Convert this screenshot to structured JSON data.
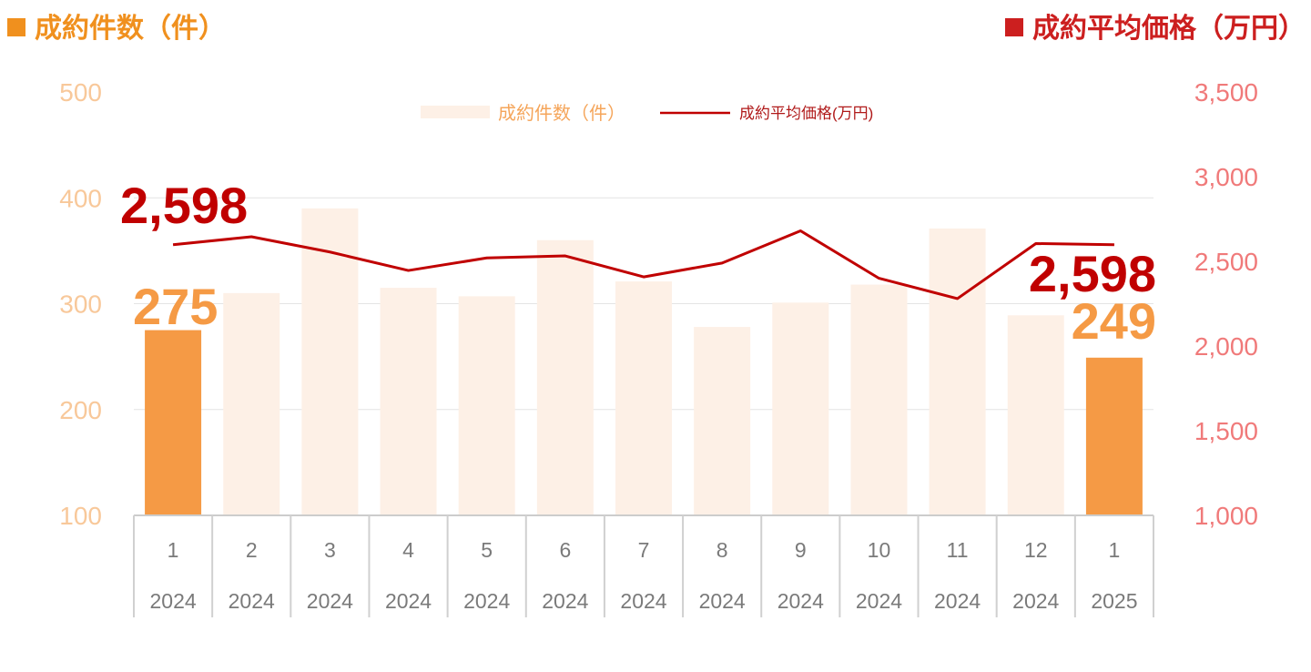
{
  "header": {
    "left_title": "成約件数（件）",
    "right_title": "成約平均価格（万円）"
  },
  "colors": {
    "bar_highlight": "#f59a45",
    "bar_faded": "#fdf0e6",
    "line": "#c00000",
    "left_axis": "#f8c89a",
    "right_axis": "#f07a7a"
  },
  "chart_data": {
    "type": "bar+line",
    "categories": [
      {
        "month": "1",
        "year": "2024"
      },
      {
        "month": "2",
        "year": "2024"
      },
      {
        "month": "3",
        "year": "2024"
      },
      {
        "month": "4",
        "year": "2024"
      },
      {
        "month": "5",
        "year": "2024"
      },
      {
        "month": "6",
        "year": "2024"
      },
      {
        "month": "7",
        "year": "2024"
      },
      {
        "month": "8",
        "year": "2024"
      },
      {
        "month": "9",
        "year": "2024"
      },
      {
        "month": "10",
        "year": "2024"
      },
      {
        "month": "11",
        "year": "2024"
      },
      {
        "month": "12",
        "year": "2024"
      },
      {
        "month": "1",
        "year": "2025"
      }
    ],
    "series": [
      {
        "name": "成約件数（件）",
        "axis": "left",
        "type": "bar",
        "values": [
          275,
          310,
          390,
          315,
          307,
          360,
          321,
          278,
          301,
          318,
          371,
          289,
          249
        ],
        "highlight": [
          true,
          false,
          false,
          false,
          false,
          false,
          false,
          false,
          false,
          false,
          false,
          false,
          true
        ]
      },
      {
        "name": "成約平均価格(万円)",
        "axis": "right",
        "type": "line",
        "values": [
          2598,
          2645,
          2555,
          2446,
          2520,
          2532,
          2408,
          2490,
          2680,
          2400,
          2280,
          2605,
          2598
        ]
      }
    ],
    "left_axis": {
      "min": 100,
      "max": 500,
      "ticks": [
        "100",
        "200",
        "300",
        "400",
        "500"
      ]
    },
    "right_axis": {
      "min": 1000,
      "max": 3500,
      "ticks": [
        "1,000",
        "1,500",
        "2,000",
        "2,500",
        "3,000",
        "3,500"
      ]
    },
    "legend": {
      "position": "top-center",
      "bar_label": "成約件数（件）",
      "line_label": "成約平均価格(万円)"
    },
    "callouts": {
      "line_first": "2,598",
      "line_last": "2,598",
      "bar_first": "275",
      "bar_last": "249"
    }
  }
}
